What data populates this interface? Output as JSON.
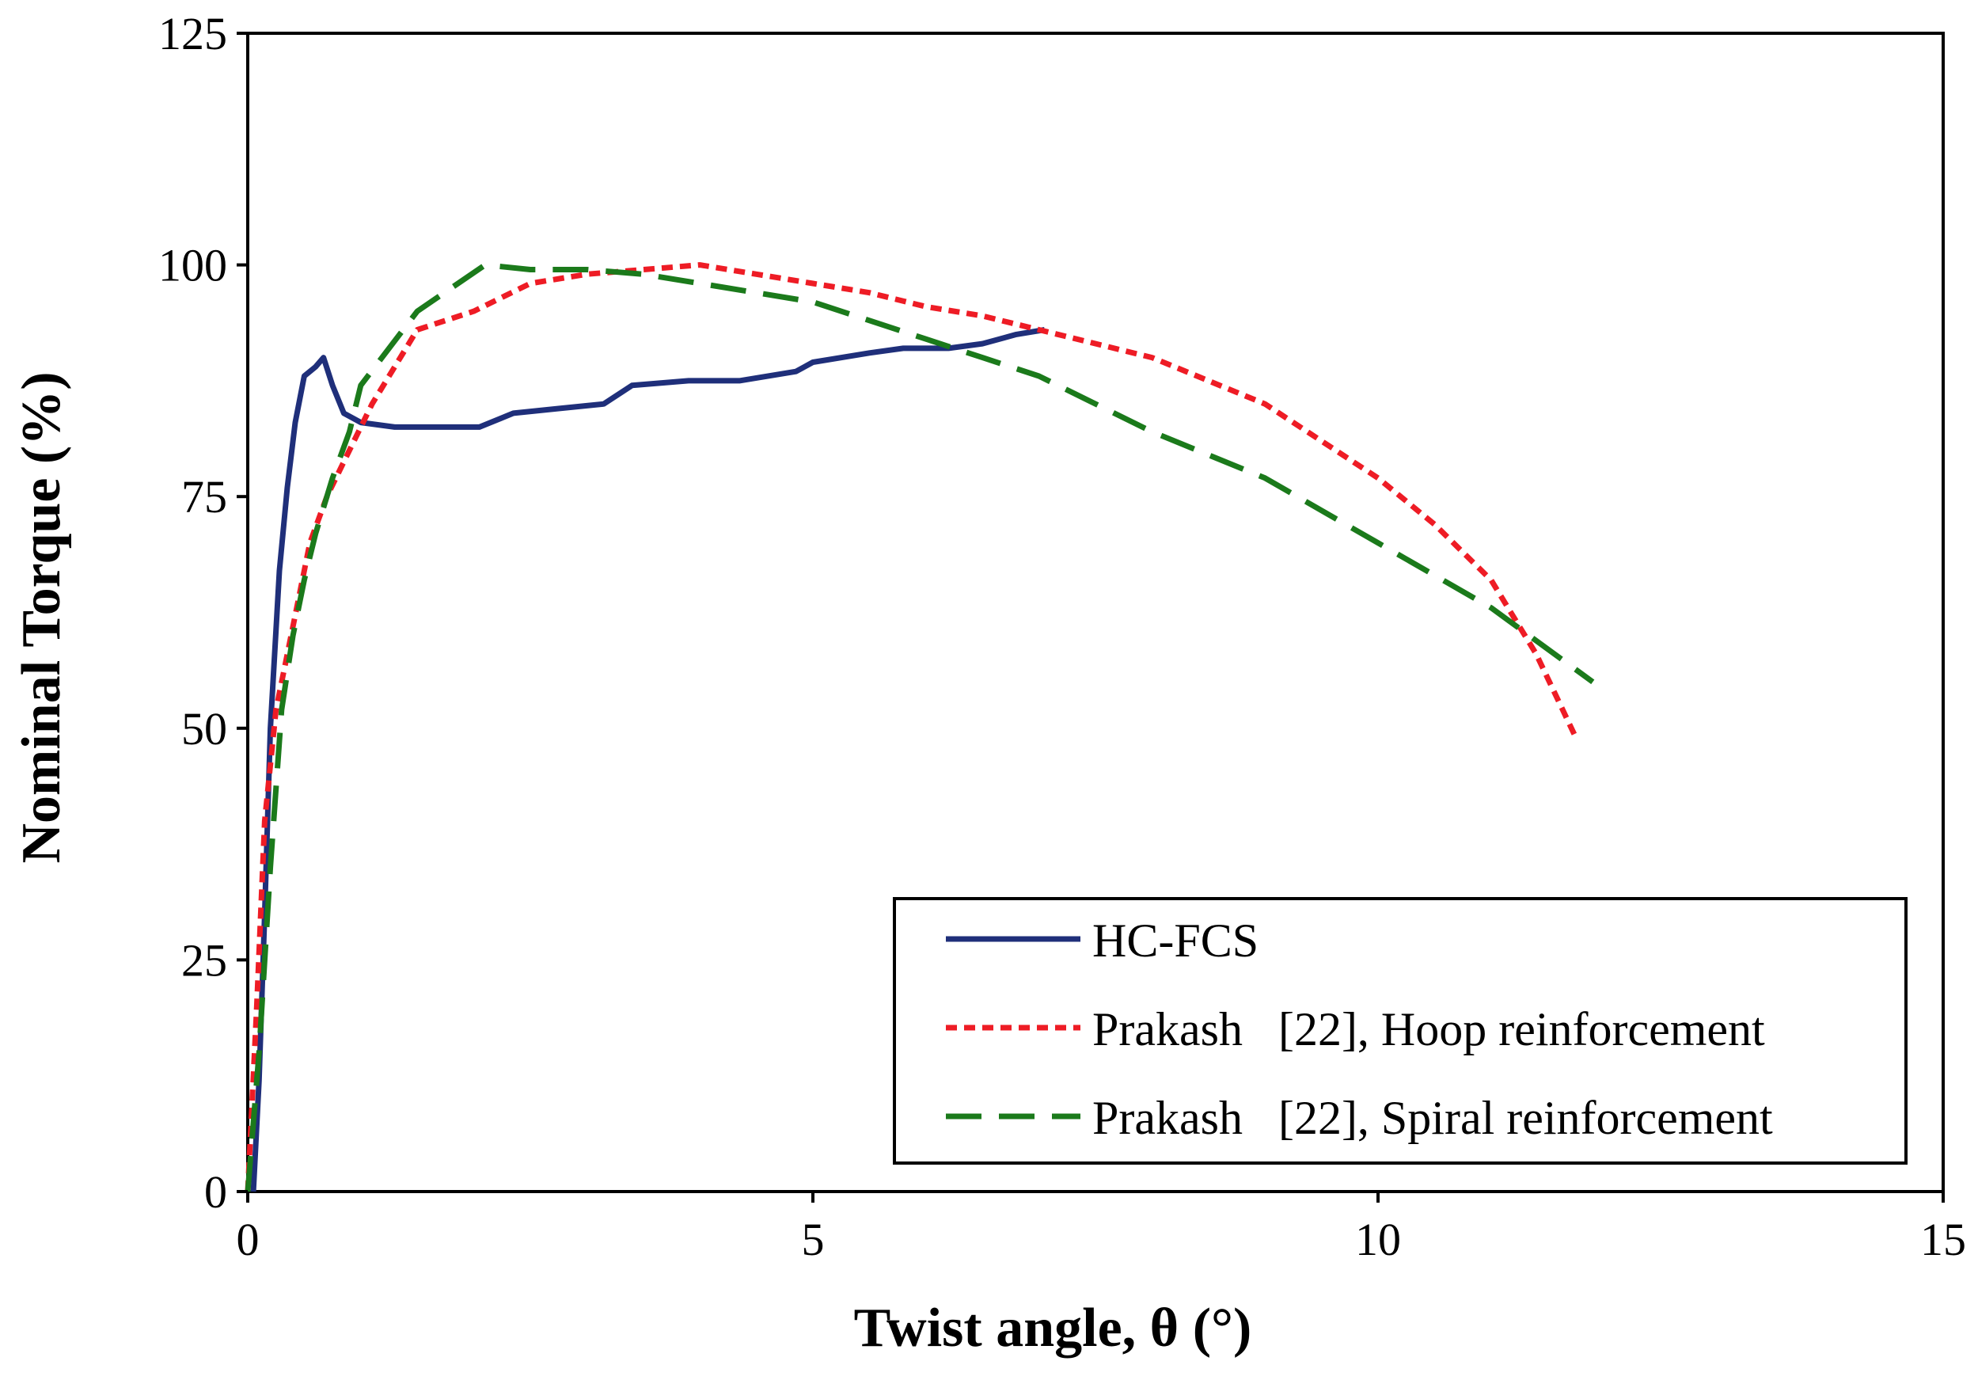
{
  "chart_data": {
    "type": "line",
    "title": "",
    "xlabel": "Twist angle, θ (°)",
    "ylabel": "Nominal Torque (%)",
    "xlim": [
      0,
      15
    ],
    "ylim": [
      0,
      125
    ],
    "xticks": [
      0,
      5,
      10,
      15
    ],
    "yticks": [
      0,
      25,
      50,
      75,
      100,
      125
    ],
    "grid": false,
    "legend_position": "bottom-right",
    "series": [
      {
        "name": "HC-FCS",
        "color": "#1f2f7a",
        "style": "solid",
        "x": [
          0.05,
          0.1,
          0.15,
          0.2,
          0.28,
          0.35,
          0.42,
          0.5,
          0.6,
          0.67,
          0.75,
          0.85,
          1.0,
          1.3,
          1.7,
          2.05,
          2.35,
          2.75,
          3.15,
          3.4,
          3.9,
          4.35,
          4.85,
          5.0,
          5.5,
          5.8,
          6.2,
          6.5,
          6.8,
          7.05
        ],
        "values": [
          0,
          12,
          30,
          50,
          67,
          76,
          83,
          88,
          89,
          90,
          87,
          84,
          83,
          82.5,
          82.5,
          82.5,
          84,
          84.5,
          85,
          87,
          87.5,
          87.5,
          88.5,
          89.5,
          90.5,
          91,
          91,
          91.5,
          92.5,
          93
        ]
      },
      {
        "name": "Prakash   [22], Hoop reinforcement",
        "color": "#ee1c25",
        "style": "dotted",
        "x": [
          0.0,
          0.08,
          0.15,
          0.25,
          0.35,
          0.45,
          0.55,
          0.7,
          0.9,
          1.1,
          1.5,
          2.0,
          2.5,
          3.0,
          3.5,
          4.0,
          4.5,
          5.0,
          5.5,
          6.0,
          6.5,
          7.0,
          8.0,
          9.0,
          10.0,
          10.5,
          11.0,
          11.4,
          11.75
        ],
        "values": [
          0,
          20,
          40,
          52,
          58,
          64,
          70,
          75,
          80,
          85,
          93,
          95,
          98,
          99,
          99.5,
          100,
          99,
          98,
          97,
          95.5,
          94.5,
          93,
          90,
          85,
          77,
          72,
          66,
          58,
          49
        ]
      },
      {
        "name": "Prakash   [22], Spiral reinforcement",
        "color": "#1b7a1b",
        "style": "dashed",
        "x": [
          0.0,
          0.1,
          0.2,
          0.3,
          0.4,
          0.5,
          0.6,
          0.75,
          0.9,
          1.0,
          1.5,
          2.1,
          2.5,
          3.0,
          3.5,
          4.0,
          4.5,
          5.0,
          5.5,
          6.0,
          6.5,
          7.0,
          8.0,
          9.0,
          10.0,
          11.0,
          11.9
        ],
        "values": [
          0,
          15,
          35,
          52,
          60,
          66,
          71,
          77,
          82,
          87,
          95,
          100,
          99.5,
          99.5,
          99,
          98,
          97,
          96,
          94,
          92,
          90,
          88,
          82,
          77,
          70,
          63,
          55
        ]
      }
    ]
  }
}
